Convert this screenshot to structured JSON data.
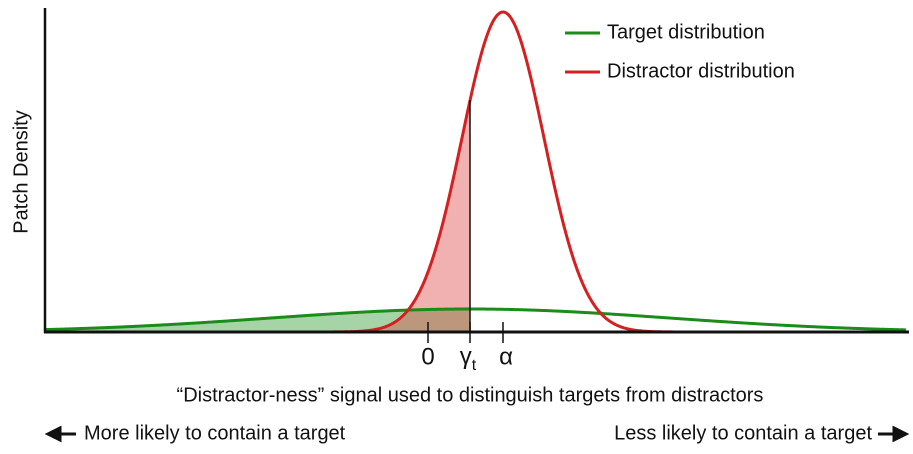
{
  "y_axis_label": "Patch Density",
  "x_axis_label": "“Distractor-ness” signal used to distinguish targets from distractors",
  "ticks": {
    "zero": "0",
    "gamma": {
      "symbol": "γ",
      "subscript": "t"
    },
    "alpha": "α"
  },
  "legend": [
    "Target distribution",
    "Distractor distribution"
  ],
  "left_note": "More likely to contain a target",
  "right_note": "Less likely to contain a target"
}
